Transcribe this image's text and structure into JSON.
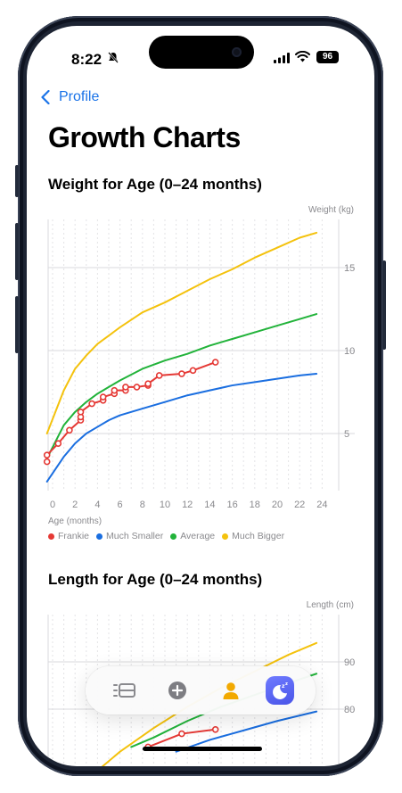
{
  "status_bar": {
    "time": "8:22",
    "battery": "96"
  },
  "nav": {
    "back_label": "Profile"
  },
  "page": {
    "title": "Growth Charts"
  },
  "weight_chart": {
    "section_title": "Weight for Age (0–24 months)",
    "y_axis_title": "Weight (kg)",
    "x_axis_title": "Age (months)",
    "legend": [
      {
        "label": "Frankie",
        "color": "#e53935"
      },
      {
        "label": "Much Smaller",
        "color": "#1a6ee0"
      },
      {
        "label": "Average",
        "color": "#22b33a"
      },
      {
        "label": "Much Bigger",
        "color": "#f4c20d"
      }
    ]
  },
  "length_chart": {
    "section_title": "Length for Age (0–24 months)",
    "y_axis_title": "Length (cm)"
  },
  "chart_data": [
    {
      "type": "line",
      "title": "Weight for Age (0–24 months)",
      "xlabel": "Age (months)",
      "ylabel": "Weight (kg)",
      "xlim": [
        -0.5,
        24
      ],
      "ylim": [
        1.5,
        17.7
      ],
      "x_ticks": [
        0,
        2,
        4,
        6,
        8,
        10,
        12,
        14,
        16,
        18,
        20,
        22,
        24
      ],
      "y_ticks": [
        5,
        10,
        15
      ],
      "grid": true,
      "legend": "bottom",
      "series": [
        {
          "name": "Much Bigger",
          "color": "#f4c20d",
          "x": [
            -0.5,
            1,
            2,
            3,
            4,
            5,
            6,
            8,
            10,
            12,
            14,
            16,
            18,
            20,
            22,
            23.5
          ],
          "y": [
            5.0,
            7.6,
            8.9,
            9.7,
            10.4,
            10.9,
            11.4,
            12.3,
            12.9,
            13.6,
            14.3,
            14.9,
            15.6,
            16.2,
            16.8,
            17.1
          ]
        },
        {
          "name": "Average",
          "color": "#22b33a",
          "x": [
            -0.5,
            1,
            2,
            3,
            4,
            5,
            6,
            8,
            10,
            12,
            14,
            16,
            18,
            20,
            22,
            23.5
          ],
          "y": [
            3.5,
            5.5,
            6.3,
            6.9,
            7.4,
            7.8,
            8.2,
            8.9,
            9.4,
            9.8,
            10.3,
            10.7,
            11.1,
            11.5,
            11.9,
            12.2
          ]
        },
        {
          "name": "Much Smaller",
          "color": "#1a6ee0",
          "x": [
            -0.5,
            1,
            2,
            3,
            4,
            5,
            6,
            8,
            10,
            12,
            14,
            16,
            18,
            20,
            22,
            23.5
          ],
          "y": [
            2.1,
            3.6,
            4.4,
            5.0,
            5.4,
            5.8,
            6.1,
            6.5,
            6.9,
            7.3,
            7.6,
            7.9,
            8.1,
            8.3,
            8.5,
            8.6
          ]
        },
        {
          "name": "Frankie",
          "color": "#e53935",
          "markers": true,
          "x": [
            -0.5,
            -0.5,
            0.5,
            1.5,
            2.5,
            2.5,
            2.5,
            3.5,
            4.5,
            4.5,
            5.5,
            5.5,
            6.5,
            6.5,
            7.5,
            8.5,
            8.5,
            9.5,
            11.5,
            12.5,
            14.5
          ],
          "y": [
            3.3,
            3.7,
            4.4,
            5.2,
            5.8,
            6.0,
            6.3,
            6.8,
            7.0,
            7.2,
            7.4,
            7.6,
            7.6,
            7.8,
            7.8,
            7.9,
            8.0,
            8.5,
            8.6,
            8.8,
            9.3
          ]
        }
      ]
    },
    {
      "type": "line",
      "title": "Length for Age (0–24 months)",
      "ylabel": "Length (cm)",
      "xlim": [
        -0.5,
        24
      ],
      "y_ticks": [
        80,
        90
      ],
      "grid": true,
      "series": [
        {
          "name": "Much Bigger",
          "color": "#f4c20d",
          "x": [
            3,
            6,
            9,
            12,
            15,
            18,
            21,
            23.5
          ],
          "y": [
            65,
            71,
            76,
            80.5,
            84.5,
            88,
            91.5,
            94
          ]
        },
        {
          "name": "Average",
          "color": "#22b33a",
          "x": [
            7,
            9,
            12,
            15,
            18,
            21,
            23.5
          ],
          "y": [
            72,
            74,
            77.5,
            80.5,
            83,
            85.5,
            87.5
          ]
        },
        {
          "name": "Much Smaller",
          "color": "#1a6ee0",
          "x": [
            11,
            14,
            17,
            20,
            23.5
          ],
          "y": [
            71,
            73.5,
            75.5,
            77.5,
            79.5
          ]
        },
        {
          "name": "Frankie",
          "color": "#e53935",
          "markers": true,
          "x": [
            8.5,
            11.5,
            14.5
          ],
          "y": [
            72,
            74.8,
            75.7
          ]
        }
      ]
    }
  ]
}
